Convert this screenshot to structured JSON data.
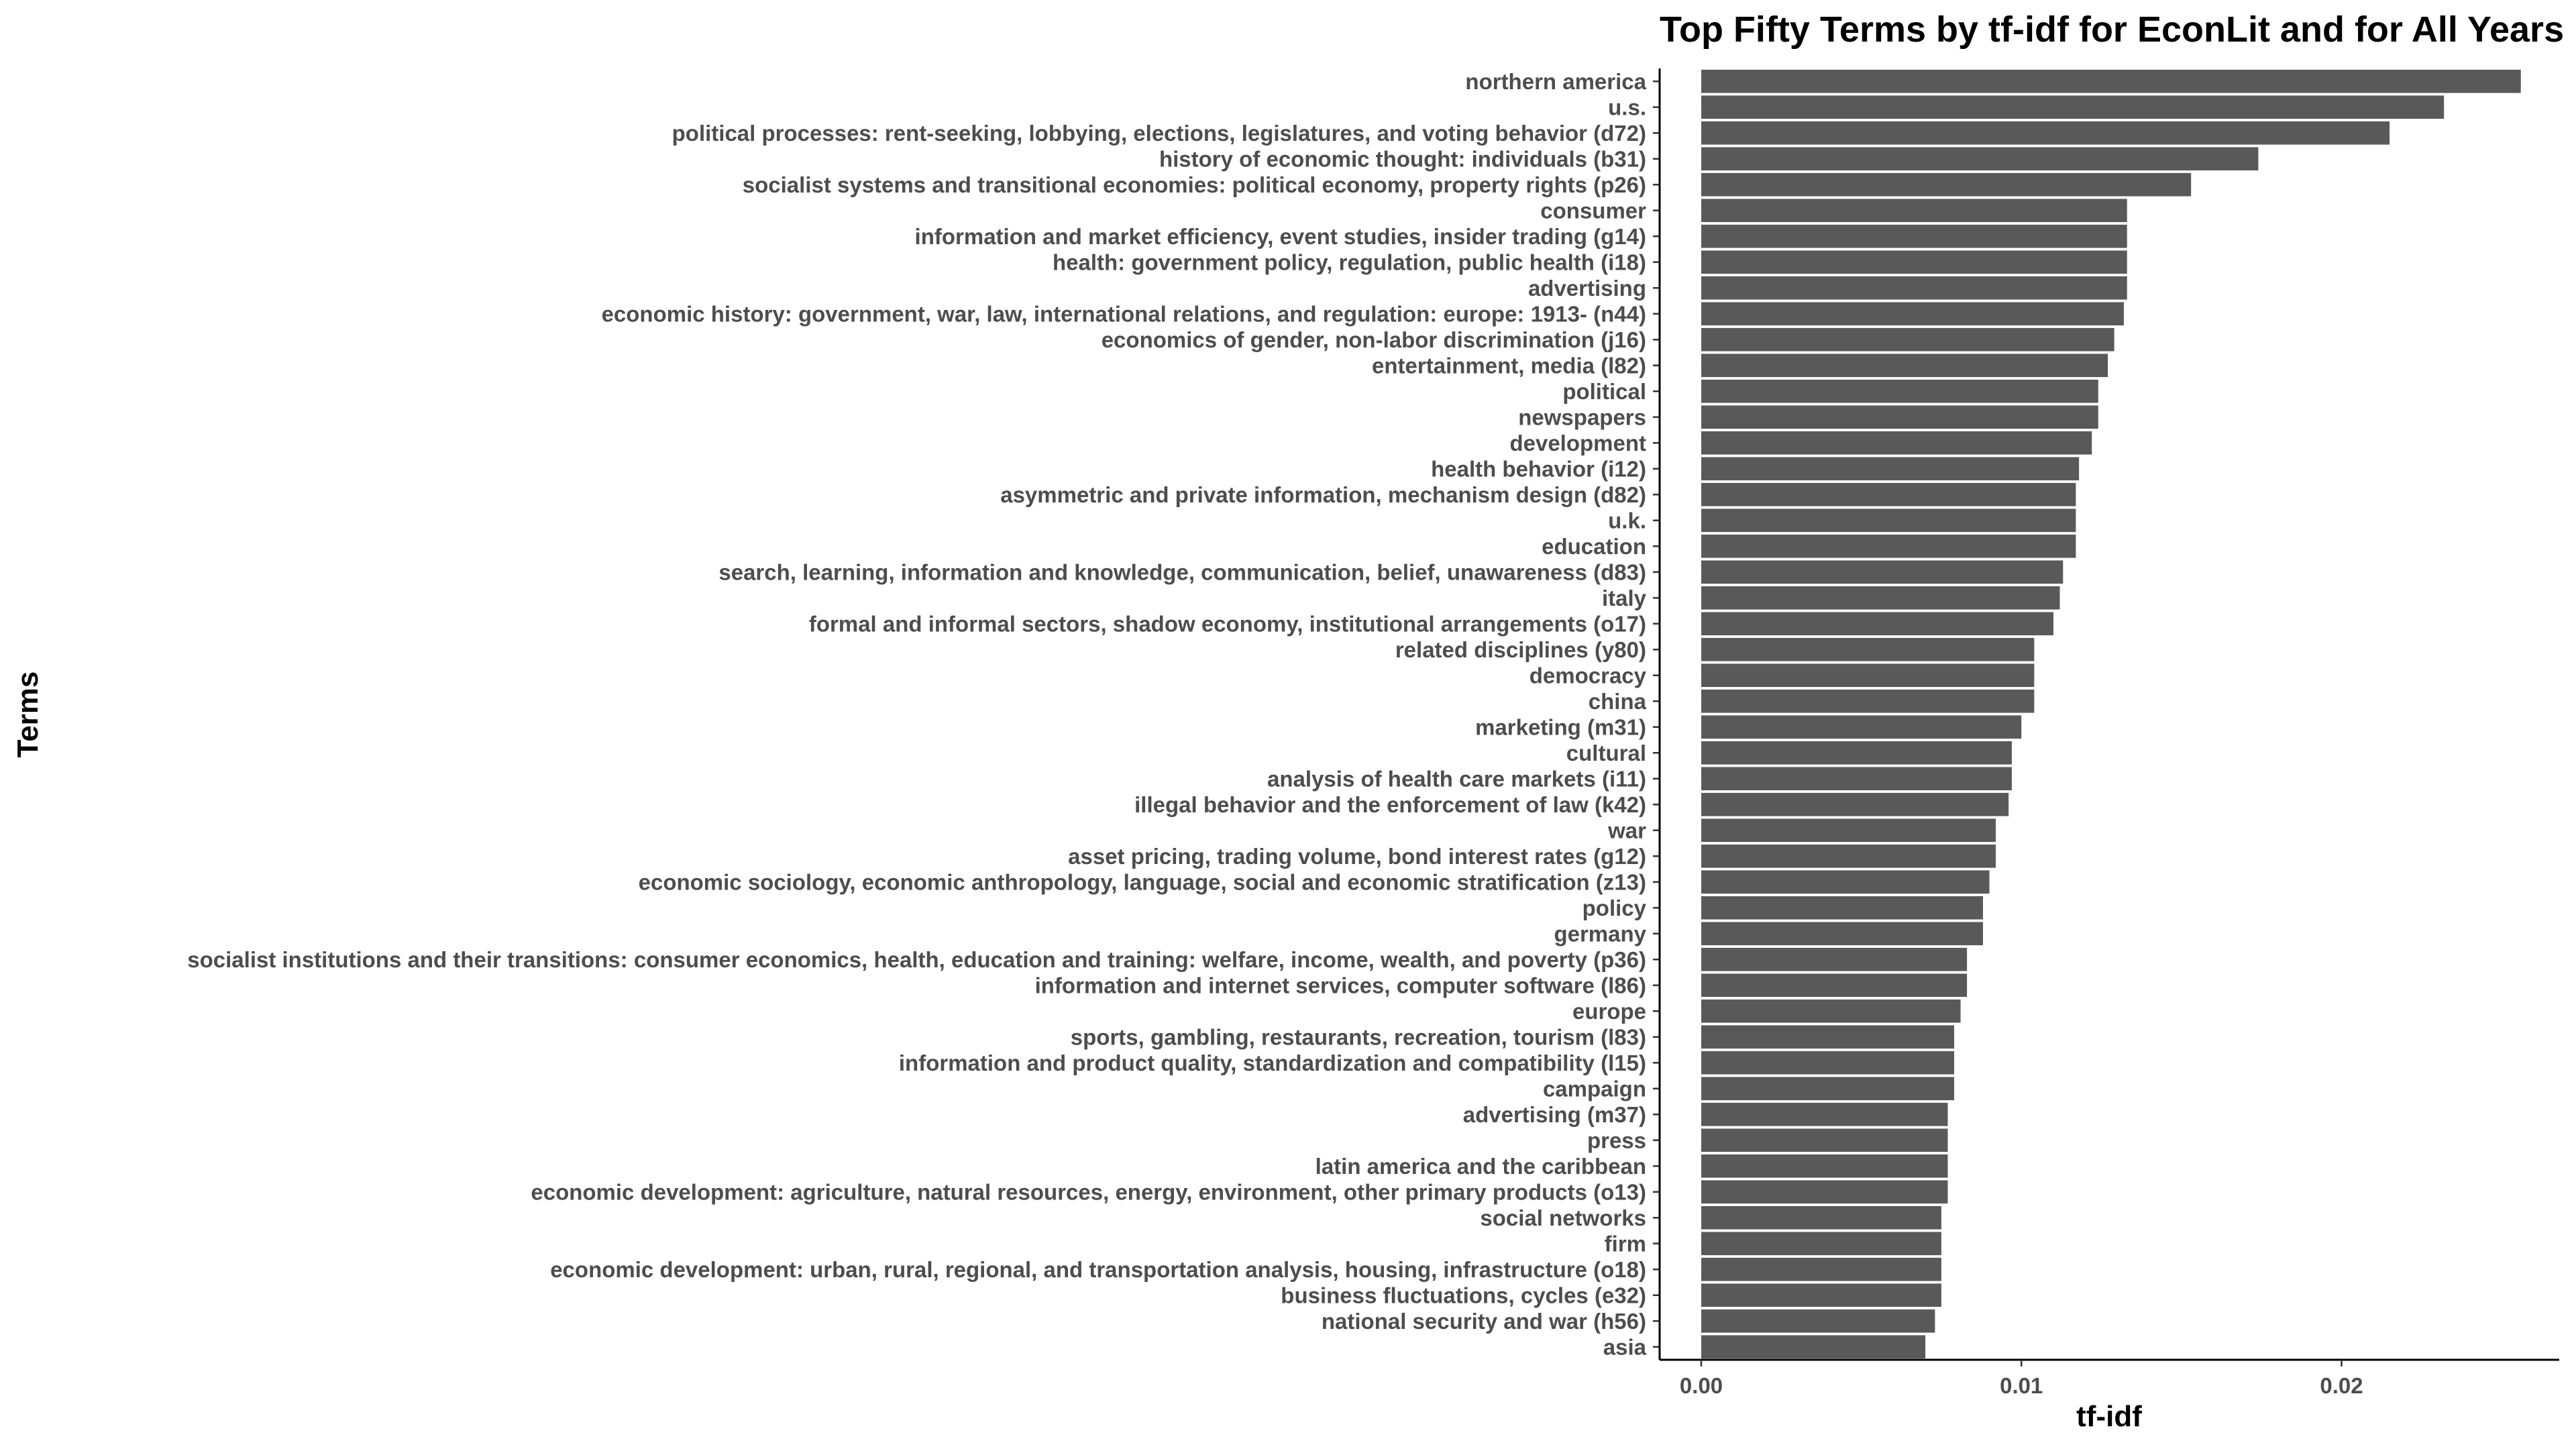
{
  "chart_data": {
    "type": "bar",
    "orientation": "horizontal",
    "title": "Top Fifty Terms by tf-idf for EconLit and for All Years",
    "xlabel": "tf-idf",
    "ylabel": "Terms",
    "xlim": [
      -0.0013,
      0.0268
    ],
    "xticks": [
      0.0,
      0.01,
      0.02
    ],
    "xtick_labels": [
      "0.00",
      "0.01",
      "0.02"
    ],
    "grid": false,
    "legend": "none",
    "bar_color": "#595959",
    "categories": [
      "northern america",
      "u.s.",
      "political processes: rent-seeking, lobbying, elections, legislatures, and voting behavior (d72)",
      "history of economic thought: individuals (b31)",
      "socialist systems and transitional economies: political economy, property rights (p26)",
      "consumer",
      "information and market efficiency, event studies, insider trading (g14)",
      "health: government policy, regulation, public health (i18)",
      "advertising",
      "economic history: government, war, law, international relations, and regulation: europe: 1913- (n44)",
      "economics of gender, non-labor discrimination (j16)",
      "entertainment, media (l82)",
      "political",
      "newspapers",
      "development",
      "health behavior (i12)",
      "asymmetric and private information, mechanism design (d82)",
      "u.k.",
      "education",
      "search, learning, information and knowledge, communication, belief, unawareness (d83)",
      "italy",
      "formal and informal sectors, shadow economy, institutional arrangements (o17)",
      "related disciplines (y80)",
      "democracy",
      "china",
      "marketing (m31)",
      "cultural",
      "analysis of health care markets (i11)",
      "illegal behavior and the enforcement of law (k42)",
      "war",
      "asset pricing, trading volume, bond interest rates (g12)",
      "economic sociology, economic anthropology, language, social and economic stratification (z13)",
      "policy",
      "germany",
      "socialist institutions and their transitions: consumer economics, health, education and training: welfare, income, wealth, and poverty (p36)",
      "information and internet services, computer software (l86)",
      "europe",
      "sports, gambling, restaurants, recreation, tourism (l83)",
      "information and product quality, standardization and compatibility (l15)",
      "campaign",
      "advertising (m37)",
      "press",
      "latin america and the caribbean",
      "economic development: agriculture, natural resources, energy, environment, other primary products (o13)",
      "social networks",
      "firm",
      "economic development: urban, rural, regional, and transportation analysis, housing, infrastructure (o18)",
      "business fluctuations, cycles (e32)",
      "national security and war (h56)",
      "asia"
    ],
    "values": [
      0.0256,
      0.0232,
      0.0215,
      0.0174,
      0.0153,
      0.0133,
      0.0133,
      0.0133,
      0.0133,
      0.0132,
      0.0129,
      0.0127,
      0.0124,
      0.0124,
      0.0122,
      0.0118,
      0.0117,
      0.0117,
      0.0117,
      0.0113,
      0.0112,
      0.011,
      0.0104,
      0.0104,
      0.0104,
      0.01,
      0.0097,
      0.0097,
      0.0096,
      0.0092,
      0.0092,
      0.009,
      0.0088,
      0.0088,
      0.0083,
      0.0083,
      0.0081,
      0.0079,
      0.0079,
      0.0079,
      0.0077,
      0.0077,
      0.0077,
      0.0077,
      0.0075,
      0.0075,
      0.0075,
      0.0075,
      0.0073,
      0.007
    ]
  }
}
